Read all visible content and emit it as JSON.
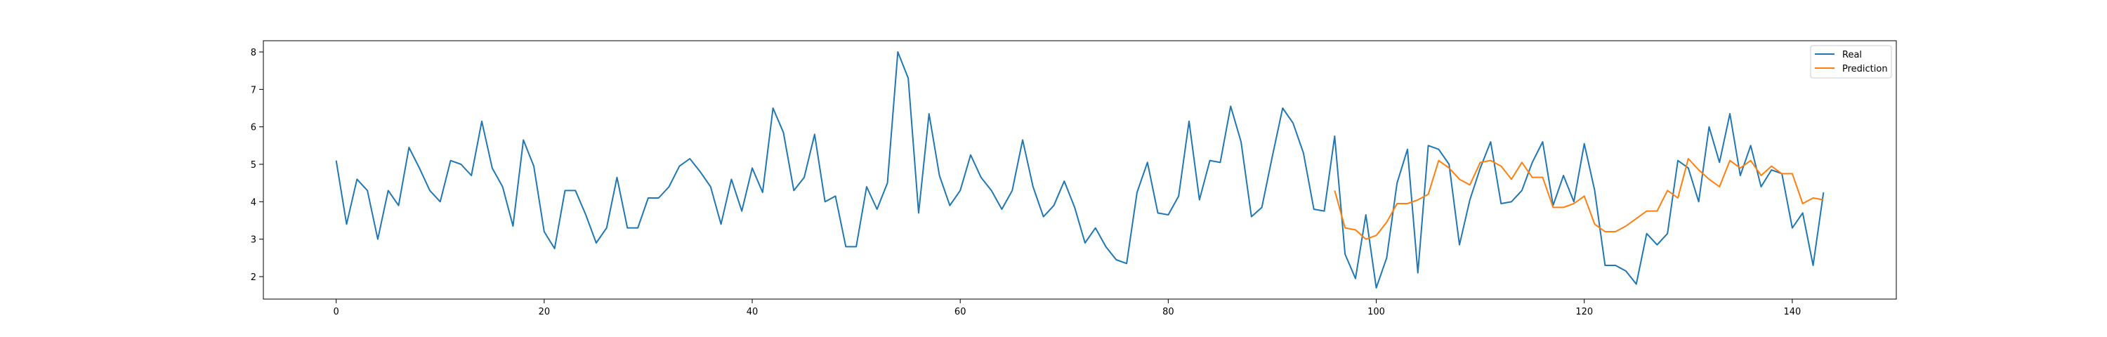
{
  "chart_data": {
    "type": "line",
    "title": "",
    "xlabel": "",
    "ylabel": "",
    "xlim": [
      -7,
      150
    ],
    "ylim": [
      1.4,
      8.3
    ],
    "xticks": [
      0,
      20,
      40,
      60,
      80,
      100,
      120,
      140
    ],
    "yticks": [
      2,
      3,
      4,
      5,
      6,
      7,
      8
    ],
    "grid": false,
    "legend_position": "top-right",
    "series": [
      {
        "name": "Real",
        "color": "#1f77b4",
        "x": [
          0,
          1,
          2,
          3,
          4,
          5,
          6,
          7,
          8,
          9,
          10,
          11,
          12,
          13,
          14,
          15,
          16,
          17,
          18,
          19,
          20,
          21,
          22,
          23,
          24,
          25,
          26,
          27,
          28,
          29,
          30,
          31,
          32,
          33,
          34,
          35,
          36,
          37,
          38,
          39,
          40,
          41,
          42,
          43,
          44,
          45,
          46,
          47,
          48,
          49,
          50,
          51,
          52,
          53,
          54,
          55,
          56,
          57,
          58,
          59,
          60,
          61,
          62,
          63,
          64,
          65,
          66,
          67,
          68,
          69,
          70,
          71,
          72,
          73,
          74,
          75,
          76,
          77,
          78,
          79,
          80,
          81,
          82,
          83,
          84,
          85,
          86,
          87,
          88,
          89,
          90,
          91,
          92,
          93,
          94,
          95,
          96,
          97,
          98,
          99,
          100,
          101,
          102,
          103,
          104,
          105,
          106,
          107,
          108,
          109,
          110,
          111,
          112,
          113,
          114,
          115,
          116,
          117,
          118,
          119,
          120,
          121,
          122,
          123,
          124,
          125,
          126,
          127,
          128,
          129,
          130,
          131,
          132,
          133,
          134,
          135,
          136,
          137,
          138,
          139,
          140,
          141,
          142,
          143
        ],
        "values": [
          5.1,
          3.4,
          4.6,
          4.3,
          3.0,
          4.3,
          3.9,
          5.45,
          4.9,
          4.3,
          4.0,
          5.1,
          5.0,
          4.7,
          6.15,
          4.9,
          4.4,
          3.35,
          5.65,
          4.95,
          3.2,
          2.75,
          4.3,
          4.3,
          3.65,
          2.9,
          3.3,
          4.65,
          3.3,
          3.3,
          4.1,
          4.1,
          4.4,
          4.95,
          5.15,
          4.8,
          4.4,
          3.4,
          4.6,
          3.75,
          4.9,
          4.25,
          6.5,
          5.85,
          4.3,
          4.65,
          5.8,
          4.0,
          4.15,
          2.8,
          2.8,
          4.4,
          3.8,
          4.5,
          8.0,
          7.3,
          3.7,
          6.35,
          4.7,
          3.9,
          4.3,
          5.25,
          4.65,
          4.3,
          3.8,
          4.3,
          5.65,
          4.4,
          3.6,
          3.9,
          4.55,
          3.85,
          2.9,
          3.3,
          2.8,
          2.45,
          2.35,
          4.25,
          5.05,
          3.7,
          3.65,
          4.15,
          6.15,
          4.05,
          5.1,
          5.05,
          6.55,
          5.6,
          3.6,
          3.85,
          5.2,
          6.5,
          6.1,
          5.3,
          3.8,
          3.75,
          5.75,
          2.6,
          1.95,
          3.65,
          1.7,
          2.5,
          4.5,
          5.4,
          2.1,
          5.5,
          5.4,
          5.0,
          2.85,
          4.05,
          4.9,
          5.6,
          3.95,
          4.0,
          4.3,
          5.05,
          5.6,
          3.9,
          4.7,
          4.0,
          5.55,
          4.3,
          2.3,
          2.3,
          2.15,
          1.8,
          3.15,
          2.85,
          3.15,
          5.1,
          4.9,
          4.0,
          6.0,
          5.05,
          6.35,
          4.7,
          5.5,
          4.4,
          4.85,
          4.75,
          3.3,
          3.7,
          2.3,
          4.25
        ]
      },
      {
        "name": "Prediction",
        "color": "#ff7f0e",
        "x": [
          96,
          97,
          98,
          99,
          100,
          101,
          102,
          103,
          104,
          105,
          106,
          107,
          108,
          109,
          110,
          111,
          112,
          113,
          114,
          115,
          116,
          117,
          118,
          119,
          120,
          121,
          122,
          123,
          124,
          125,
          126,
          127,
          128,
          129,
          130,
          131,
          132,
          133,
          134,
          135,
          136,
          137,
          138,
          139,
          140,
          141,
          142,
          143
        ],
        "values": [
          4.3,
          3.3,
          3.25,
          3.0,
          3.1,
          3.45,
          3.95,
          3.95,
          4.05,
          4.2,
          5.1,
          4.9,
          4.6,
          4.45,
          5.05,
          5.1,
          4.95,
          4.6,
          5.05,
          4.65,
          4.65,
          3.85,
          3.85,
          3.95,
          4.15,
          3.4,
          3.2,
          3.2,
          3.35,
          3.55,
          3.75,
          3.75,
          4.3,
          4.1,
          5.15,
          4.85,
          4.6,
          4.4,
          5.1,
          4.9,
          5.1,
          4.7,
          4.95,
          4.75,
          4.75,
          3.95,
          4.1,
          4.05
        ]
      }
    ]
  }
}
